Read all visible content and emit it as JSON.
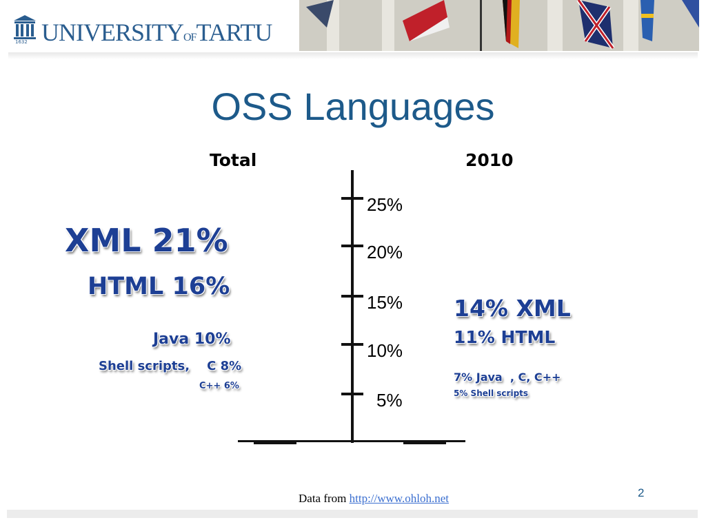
{
  "header": {
    "logo": {
      "name_left": "UNIVERSITY",
      "of": "OF",
      "name_right": "TARTU",
      "year": "1632"
    }
  },
  "title": "OSS Languages",
  "columns": {
    "left": "Total",
    "right": "2010"
  },
  "scale": [
    "25%",
    "20%",
    "15%",
    "10%",
    "5%"
  ],
  "total": [
    "XML 21%",
    "HTML 16%",
    "Java 10%",
    "Shell scripts,    C 8%",
    "C++ 6%"
  ],
  "year_2010": [
    "14% XML",
    "11% HTML",
    "7% Java  , C, C++",
    "5% Shell scripts"
  ],
  "footer": {
    "source_prefix": "Data from ",
    "source_link": "http://www.ohloh.net",
    "page_number": "2"
  }
}
